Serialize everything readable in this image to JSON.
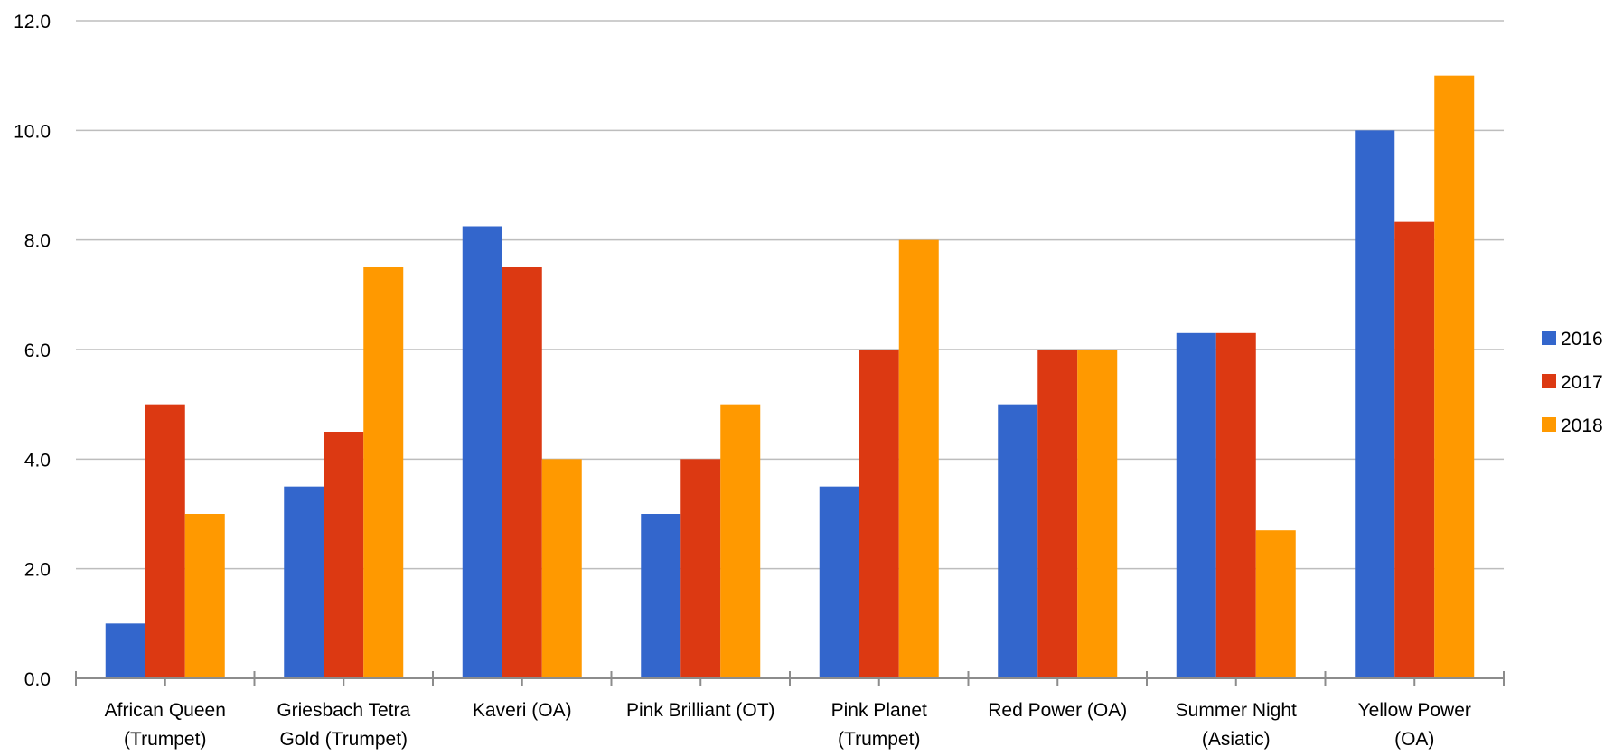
{
  "chart_data": {
    "type": "bar",
    "title": "",
    "xlabel": "",
    "ylabel": "",
    "ylim": [
      0,
      12
    ],
    "yticks": [
      "0.0",
      "2.0",
      "4.0",
      "6.0",
      "8.0",
      "10.0",
      "12.0"
    ],
    "grid": true,
    "legend_position": "right",
    "categories": [
      [
        "African Queen",
        "(Trumpet)"
      ],
      [
        "Griesbach Tetra",
        "Gold (Trumpet)"
      ],
      [
        "Kaveri (OA)"
      ],
      [
        "Pink Brilliant (OT)"
      ],
      [
        "Pink Planet",
        "(Trumpet)"
      ],
      [
        "Red Power (OA)"
      ],
      [
        "Summer Night",
        "(Asiatic)"
      ],
      [
        "Yellow Power",
        "(OA)"
      ]
    ],
    "series": [
      {
        "name": "2016",
        "color": "#3366CC",
        "values": [
          1.0,
          3.5,
          8.25,
          3.0,
          3.5,
          5.0,
          6.3,
          10.0
        ]
      },
      {
        "name": "2017",
        "color": "#DC3912",
        "values": [
          5.0,
          4.5,
          7.5,
          4.0,
          6.0,
          6.0,
          6.3,
          8.33
        ]
      },
      {
        "name": "2018",
        "color": "#FF9900",
        "values": [
          3.0,
          7.5,
          4.0,
          5.0,
          8.0,
          6.0,
          2.7,
          11.0
        ]
      }
    ]
  }
}
